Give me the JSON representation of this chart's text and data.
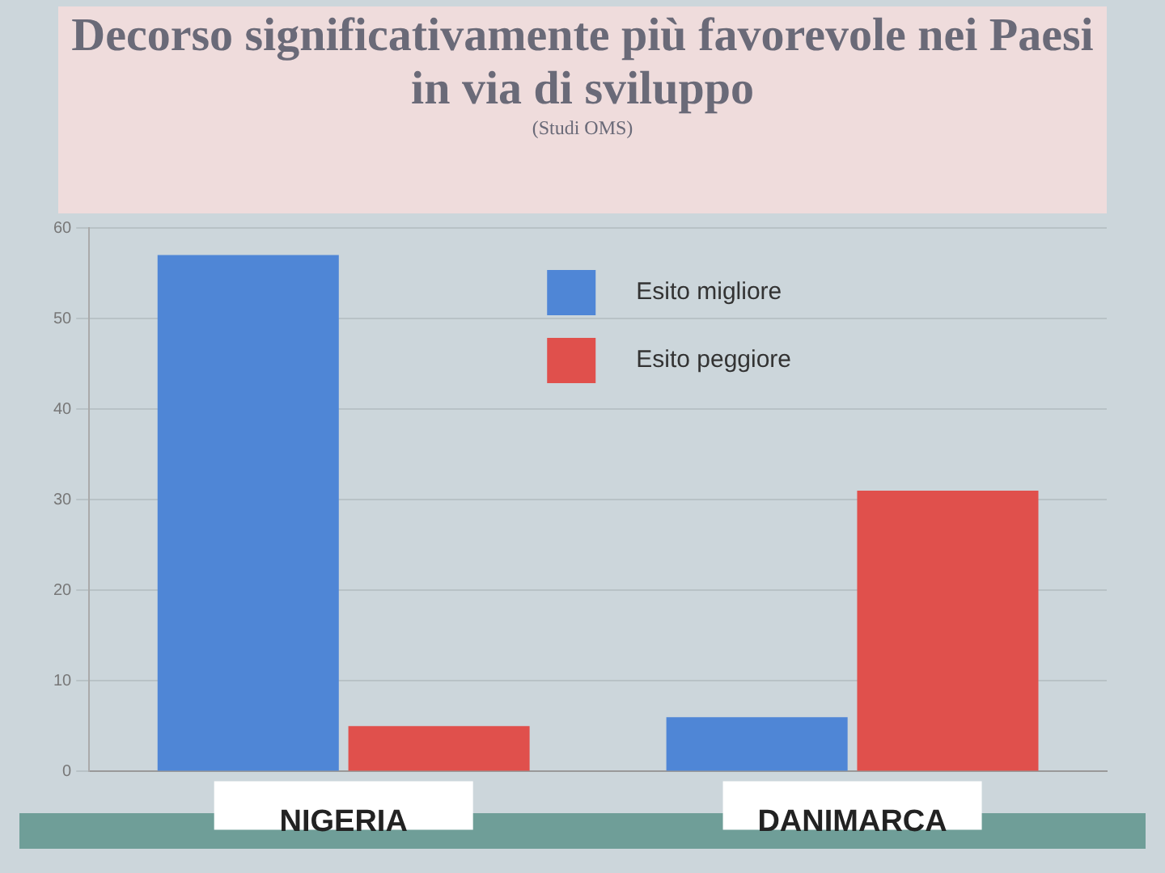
{
  "chart_data": {
    "type": "bar",
    "title": "Decorso significativamente più favorevole nei Paesi in via di sviluppo",
    "subtitle": "(Studi OMS)",
    "categories": [
      "NIGERIA",
      "DANIMARCA"
    ],
    "series": [
      {
        "name": "Esito migliore",
        "color": "#4f86d6",
        "values": [
          57,
          6
        ]
      },
      {
        "name": "Esito peggiore",
        "color": "#e0504c",
        "values": [
          5,
          31
        ]
      }
    ],
    "ylim": [
      0,
      60
    ],
    "yticks": [
      0,
      10,
      20,
      30,
      40,
      50,
      60
    ],
    "grid": "y",
    "legend": "top"
  }
}
